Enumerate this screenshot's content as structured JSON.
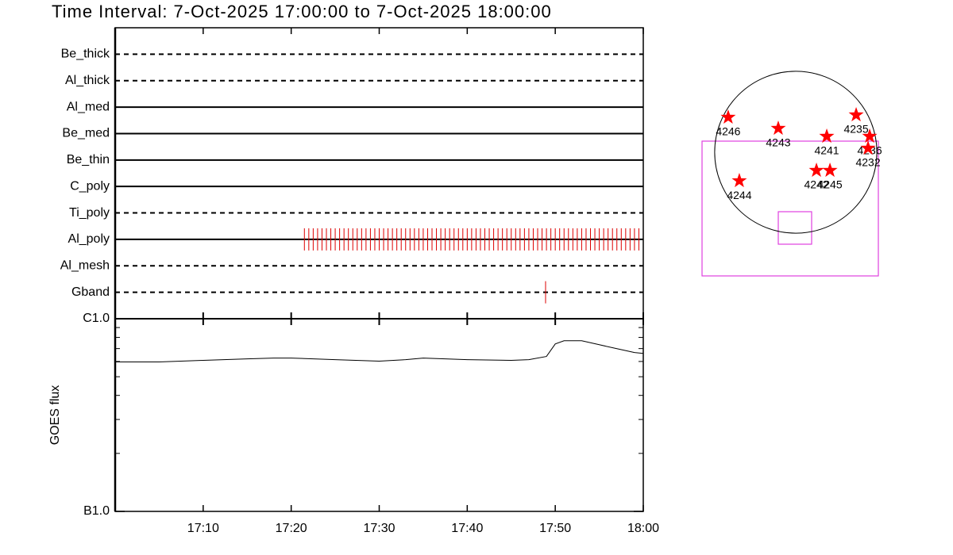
{
  "title": "Time Interval:  7-Oct-2025 17:00:00 to  7-Oct-2025 18:00:00",
  "chart_data": [
    {
      "type": "event",
      "xlim": [
        0,
        60
      ],
      "xticks": [
        {
          "value": 10,
          "label": "17:10"
        },
        {
          "value": 20,
          "label": "17:20"
        },
        {
          "value": 30,
          "label": "17:30"
        },
        {
          "value": 40,
          "label": "17:40"
        },
        {
          "value": 50,
          "label": "17:50"
        },
        {
          "value": 60,
          "label": "18:00"
        }
      ],
      "color": "#dd0000",
      "rows": [
        {
          "label": "Be_thick",
          "style": "dashed",
          "x": []
        },
        {
          "label": "Al_thick",
          "style": "dashed",
          "x": []
        },
        {
          "label": "Al_med",
          "style": "solid",
          "x": []
        },
        {
          "label": "Be_med",
          "style": "solid",
          "x": []
        },
        {
          "label": "Be_thin",
          "style": "solid",
          "x": []
        },
        {
          "label": "C_poly",
          "style": "solid",
          "x": []
        },
        {
          "label": "Ti_poly",
          "style": "dashed",
          "x": []
        },
        {
          "label": "Al_poly",
          "style": "solid",
          "x": [
            21.5,
            22,
            22.5,
            23,
            23.5,
            24,
            24.5,
            25,
            25.5,
            26,
            26.5,
            27,
            27.5,
            28,
            28.5,
            29,
            29.5,
            30,
            30.5,
            31,
            31.5,
            32,
            32.5,
            33,
            33.5,
            34,
            34.5,
            35,
            35.5,
            36,
            36.5,
            37,
            37.5,
            38,
            38.5,
            39,
            39.5,
            40,
            40.5,
            41,
            41.5,
            42,
            42.5,
            43,
            43.5,
            44,
            44.5,
            45,
            45.5,
            46,
            46.5,
            47,
            47.5,
            48,
            48.5,
            49,
            49.5,
            50,
            50.5,
            51,
            51.5,
            52,
            52.5,
            53,
            53.5,
            54,
            54.5,
            55,
            55.5,
            56,
            56.5,
            57,
            57.5,
            58,
            58.5,
            59,
            59.5
          ]
        },
        {
          "label": "Al_mesh",
          "style": "dashed",
          "x": []
        },
        {
          "label": "Gband",
          "style": "dashed",
          "x": [
            48.9
          ]
        }
      ]
    },
    {
      "type": "line",
      "ylabel": "GOES flux",
      "log_scale": true,
      "xlim": [
        0,
        60
      ],
      "ylim": [
        1e-07,
        1e-06
      ],
      "yticks": [
        {
          "value": 1e-06,
          "label": "C1.0"
        },
        {
          "value": 1e-07,
          "label": "B1.0"
        }
      ],
      "yminor": [
        2e-07,
        3e-07,
        4e-07,
        5e-07,
        6e-07,
        7e-07,
        8e-07,
        9e-07
      ],
      "color": "#000000",
      "x": [
        0,
        5,
        10,
        15,
        18,
        20,
        25,
        30,
        33,
        35,
        40,
        45,
        47,
        49,
        50,
        51,
        53,
        55,
        57,
        59,
        60
      ],
      "values": [
        5.97e-07,
        5.97e-07,
        6.08e-07,
        6.19e-07,
        6.25e-07,
        6.25e-07,
        6.13e-07,
        6.02e-07,
        6.13e-07,
        6.25e-07,
        6.13e-07,
        6.08e-07,
        6.13e-07,
        6.37e-07,
        7.4e-07,
        7.69e-07,
        7.69e-07,
        7.33e-07,
        6.99e-07,
        6.68e-07,
        6.61e-07
      ]
    },
    {
      "type": "map",
      "xlim": [
        -1100,
        1100
      ],
      "ylim": [
        -1100,
        1100
      ],
      "limb_radius": 960,
      "color": "#ff0000",
      "points": [
        {
          "label": "4246",
          "x": -800,
          "y": 414
        },
        {
          "label": "4243",
          "x": -207,
          "y": 282
        },
        {
          "label": "4235",
          "x": 715,
          "y": 442
        },
        {
          "label": "4241",
          "x": 367,
          "y": 188
        },
        {
          "label": "4236",
          "x": 875,
          "y": 188
        },
        {
          "label": "4232",
          "x": 856,
          "y": 47
        },
        {
          "label": "4242",
          "x": 245,
          "y": -216
        },
        {
          "label": "4245",
          "x": 405,
          "y": -216
        },
        {
          "label": "4244",
          "x": -668,
          "y": -339
        }
      ]
    }
  ]
}
